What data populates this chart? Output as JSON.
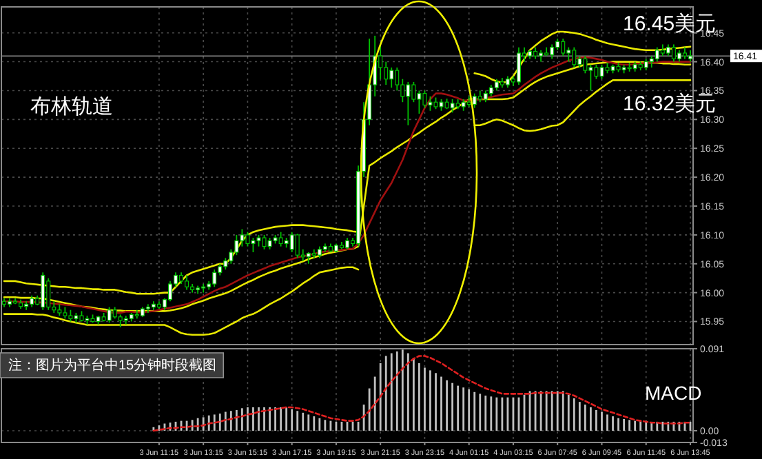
{
  "chart_data": [
    {
      "type": "candlestick",
      "tick_labels": "y",
      "grid": true,
      "categories": [
        null,
        null,
        null,
        null,
        null,
        null,
        null,
        null,
        null,
        null,
        null,
        null,
        null,
        null,
        null,
        null,
        null,
        null,
        null,
        null,
        null,
        null,
        null,
        null,
        null,
        null,
        null,
        null,
        null,
        null,
        null,
        null,
        null,
        null,
        null,
        null,
        null,
        null,
        null,
        null,
        null,
        null,
        null,
        null,
        null,
        null,
        null,
        null,
        null,
        null,
        null,
        null,
        null,
        null,
        null,
        null,
        null,
        null,
        null,
        null,
        null,
        null,
        null,
        null,
        null,
        null,
        null,
        null,
        null,
        null,
        null,
        null,
        null,
        null,
        null,
        null,
        null,
        null,
        null,
        null,
        null,
        null,
        null,
        null,
        null,
        null,
        null,
        null,
        null,
        null,
        null,
        null,
        null,
        null,
        null,
        null,
        null,
        null,
        null,
        null,
        null,
        null,
        null,
        null,
        null,
        null,
        null,
        null,
        null,
        null,
        null,
        null,
        null,
        null,
        null,
        null,
        null,
        null,
        null,
        null,
        null,
        null,
        null,
        null,
        null
      ],
      "ylim": [
        15.91,
        16.495
      ],
      "yticks": [
        15.95,
        {
          "value": 16,
          "label": "16.00"
        },
        16.05,
        {
          "value": 16.1,
          "label": "16.10"
        },
        16.15,
        {
          "value": 16.2,
          "label": "16.20"
        },
        16.25,
        {
          "value": 16.3,
          "label": "16.30"
        },
        16.35,
        {
          "value": 16.4,
          "label": "16.40"
        },
        16.45
      ],
      "ref_lines": [
        {
          "axis": "y",
          "value": 16.41,
          "label": "16.41",
          "color": "#8c8c8c"
        }
      ],
      "annotations": [
        "布林轨道",
        "16.45美元",
        "16.32美元"
      ],
      "series": [
        {
          "type": "line",
          "color": "#e8e800",
          "values": [
            16.02,
            16.02,
            16.02,
            16.018,
            16.016,
            16.015,
            16.014,
            16.013,
            16.012,
            16.011,
            16.01,
            16.01,
            16.009,
            16.008,
            16.008,
            16.007,
            16.006,
            16.006,
            16.005,
            16.005,
            16.005,
            16.003,
            16.001,
            16.0,
            15.998,
            15.998,
            15.998,
            15.998,
            15.999,
            16.0,
            16.0,
            16.01,
            16.02,
            16.03,
            16.035,
            16.038,
            16.041,
            16.044,
            16.047,
            16.05,
            16.05,
            16.06,
            16.075,
            16.09,
            16.1,
            16.105,
            16.108,
            16.11,
            16.112,
            16.114,
            16.115,
            16.116,
            16.117,
            16.117,
            16.117,
            16.116,
            16.115,
            16.114,
            16.113,
            16.112,
            16.11,
            16.109,
            16.108,
            16.106,
            16.105,
            16.3,
            null,
            null,
            null,
            null,
            null,
            null,
            null,
            null,
            null,
            null,
            null,
            null,
            null,
            null,
            null,
            null,
            null,
            null,
            null,
            16.38,
            16.378,
            16.375,
            16.37,
            16.366,
            16.364,
            16.365,
            16.375,
            16.39,
            16.405,
            16.42,
            16.428,
            16.436,
            16.442,
            16.448,
            16.452,
            16.452,
            16.451,
            16.45,
            16.448,
            16.445,
            16.442,
            16.438,
            16.435,
            16.432,
            16.43,
            16.428,
            16.426,
            16.424,
            16.422,
            16.421,
            16.42,
            16.42,
            16.42,
            16.421,
            16.422,
            16.423,
            16.424,
            16.425,
            16.426
          ]
        },
        {
          "type": "line",
          "color": "#e8e800",
          "values": [
            15.992,
            15.992,
            15.992,
            15.991,
            15.991,
            15.991,
            15.99,
            15.99,
            15.988,
            15.986,
            15.984,
            15.982,
            15.98,
            15.978,
            15.976,
            15.975,
            15.974,
            15.972,
            15.971,
            15.97,
            15.969,
            15.969,
            15.968,
            15.968,
            15.968,
            15.968,
            15.968,
            15.968,
            15.968,
            15.968,
            15.969,
            15.971,
            15.973,
            15.976,
            15.98,
            15.983,
            15.986,
            15.99,
            15.993,
            15.996,
            15.999,
            16.003,
            16.008,
            16.013,
            16.018,
            16.022,
            16.027,
            16.031,
            16.035,
            16.038,
            16.042,
            16.045,
            16.048,
            16.051,
            16.054,
            16.058,
            16.061,
            16.064,
            16.067,
            16.069,
            16.071,
            16.073,
            16.075,
            16.076,
            16.08,
            16.15,
            16.22,
            16.226,
            16.233,
            16.239,
            16.245,
            16.252,
            16.258,
            16.264,
            16.271,
            16.277,
            16.284,
            16.29,
            16.296,
            16.303,
            16.309,
            16.316,
            16.322,
            16.328,
            16.335,
            16.335,
            16.335,
            16.335,
            16.335,
            16.335,
            16.335,
            16.336,
            16.338,
            16.345,
            16.352,
            16.359,
            16.365,
            16.37,
            16.374,
            16.377,
            16.38,
            16.383,
            16.386,
            16.389,
            16.392,
            16.395,
            16.396,
            16.397,
            16.398,
            16.399,
            16.4,
            16.4,
            16.4,
            16.4,
            16.4,
            16.399,
            16.399,
            16.398,
            16.398,
            16.397,
            16.397,
            16.396,
            16.396,
            16.395,
            16.395
          ]
        },
        {
          "type": "line",
          "color": "#e8e800",
          "values": [
            15.963,
            15.963,
            15.963,
            15.963,
            15.963,
            15.963,
            15.962,
            15.962,
            15.96,
            15.957,
            15.955,
            15.952,
            15.95,
            15.948,
            15.946,
            15.944,
            15.944,
            15.944,
            15.944,
            15.944,
            15.944,
            15.944,
            15.944,
            15.944,
            15.944,
            15.944,
            15.944,
            15.944,
            15.944,
            15.944,
            15.94,
            15.935,
            15.93,
            15.928,
            15.927,
            15.927,
            15.927,
            15.928,
            15.93,
            15.935,
            15.94,
            15.945,
            15.95,
            15.956,
            15.96,
            15.963,
            15.968,
            15.974,
            15.98,
            15.985,
            15.99,
            15.996,
            16.002,
            16.009,
            16.016,
            16.022,
            16.029,
            16.035,
            16.037,
            16.039,
            16.041,
            16.043,
            16.044,
            16.044,
            16.04,
            null,
            null,
            null,
            null,
            null,
            null,
            null,
            null,
            null,
            null,
            null,
            null,
            null,
            null,
            null,
            null,
            null,
            null,
            null,
            null,
            16.29,
            16.29,
            16.293,
            16.297,
            16.3,
            16.298,
            16.294,
            16.29,
            16.285,
            16.281,
            16.28,
            16.281,
            16.283,
            16.286,
            16.289,
            16.29,
            16.295,
            16.305,
            16.315,
            16.325,
            16.333,
            16.34,
            16.348,
            16.355,
            16.362,
            16.368,
            16.368,
            16.368,
            16.368,
            16.368,
            16.368,
            16.368,
            16.368,
            16.368,
            16.368,
            16.368,
            16.368,
            16.368,
            16.368,
            16.368
          ]
        },
        {
          "type": "line",
          "color": "#a01010",
          "values": [
            15.985,
            15.985,
            15.985,
            15.984,
            15.984,
            15.984,
            15.983,
            15.983,
            15.982,
            15.981,
            15.98,
            15.979,
            15.978,
            15.977,
            15.976,
            15.974,
            15.972,
            15.97,
            15.968,
            15.966,
            15.965,
            15.965,
            15.967,
            15.967,
            15.966,
            15.966,
            15.967,
            15.968,
            15.97,
            15.972,
            15.974,
            15.976,
            15.978,
            15.98,
            15.984,
            15.988,
            15.993,
            15.998,
            16.003,
            16.007,
            16.01,
            16.015,
            16.02,
            16.025,
            16.03,
            16.034,
            16.038,
            16.042,
            16.046,
            16.049,
            16.052,
            16.055,
            16.058,
            16.061,
            16.063,
            16.065,
            16.067,
            16.07,
            16.071,
            16.072,
            16.073,
            16.074,
            16.075,
            16.076,
            16.085,
            16.1,
            16.12,
            16.14,
            16.16,
            16.175,
            16.19,
            16.21,
            16.23,
            16.255,
            16.28,
            16.3,
            16.32,
            16.335,
            16.345,
            16.345,
            16.343,
            16.34,
            16.337,
            16.333,
            16.333,
            16.334,
            16.335,
            16.337,
            16.339,
            16.341,
            16.343,
            16.344,
            16.345,
            16.352,
            16.36,
            16.367,
            16.374,
            16.38,
            16.385,
            16.39,
            16.394,
            16.398,
            16.402,
            16.405,
            16.407,
            16.408,
            16.407,
            16.405,
            16.403,
            16.4,
            16.398,
            16.396,
            16.395,
            16.395,
            16.396,
            16.397,
            16.398,
            16.398,
            16.399,
            16.4,
            16.4,
            16.4,
            16.4,
            16.4,
            16.4
          ]
        },
        {
          "color": "#00c000",
          "ohlc": [
            [
              15.985,
              15.99,
              15.975,
              15.98
            ],
            [
              15.98,
              15.99,
              15.975,
              15.985
            ],
            [
              15.985,
              15.99,
              15.98,
              15.982
            ],
            [
              15.982,
              15.988,
              15.972,
              15.976
            ],
            [
              15.976,
              15.985,
              15.97,
              15.98
            ],
            [
              15.98,
              15.995,
              15.975,
              15.99
            ],
            [
              15.99,
              15.995,
              15.978,
              15.98
            ],
            [
              15.975,
              16.035,
              15.97,
              16.03
            ],
            [
              16.02,
              16.025,
              15.97,
              15.975
            ],
            [
              15.975,
              15.985,
              15.965,
              15.97
            ],
            [
              15.97,
              15.98,
              15.96,
              15.965
            ],
            [
              15.965,
              15.975,
              15.955,
              15.96
            ],
            [
              15.96,
              15.97,
              15.95,
              15.955
            ],
            [
              15.955,
              15.965,
              15.948,
              15.96
            ],
            [
              15.96,
              15.968,
              15.95,
              15.952
            ],
            [
              15.952,
              15.96,
              15.945,
              15.955
            ],
            [
              15.955,
              15.962,
              15.948,
              15.95
            ],
            [
              15.95,
              15.96,
              15.945,
              15.958
            ],
            [
              15.958,
              15.965,
              15.95,
              15.952
            ],
            [
              15.952,
              15.975,
              15.948,
              15.97
            ],
            [
              15.97,
              15.975,
              15.955,
              15.958
            ],
            [
              15.958,
              15.962,
              15.94,
              15.952
            ],
            [
              15.952,
              15.96,
              15.945,
              15.955
            ],
            [
              15.955,
              15.965,
              15.95,
              15.962
            ],
            [
              15.962,
              15.97,
              15.955,
              15.96
            ],
            [
              15.96,
              15.975,
              15.958,
              15.972
            ],
            [
              15.972,
              15.98,
              15.965,
              15.975
            ],
            [
              15.975,
              15.985,
              15.97,
              15.98
            ],
            [
              15.98,
              15.985,
              15.972,
              15.975
            ],
            [
              15.975,
              15.99,
              15.97,
              15.988
            ],
            [
              15.988,
              16.02,
              15.985,
              16.015
            ],
            [
              16.015,
              16.035,
              16.01,
              16.03
            ],
            [
              16.03,
              16.035,
              16.015,
              16.02
            ],
            [
              16.02,
              16.03,
              16.005,
              16.01
            ],
            [
              16.01,
              16.015,
              16.0,
              16.005
            ],
            [
              16.005,
              16.012,
              15.998,
              16.008
            ],
            [
              16.008,
              16.015,
              16.0,
              16.01
            ],
            [
              16.01,
              16.02,
              16.005,
              16.015
            ],
            [
              16.015,
              16.04,
              16.01,
              16.035
            ],
            [
              16.035,
              16.05,
              16.03,
              16.045
            ],
            [
              16.045,
              16.06,
              16.04,
              16.055
            ],
            [
              16.055,
              16.075,
              16.05,
              16.07
            ],
            [
              16.07,
              16.1,
              16.065,
              16.09
            ],
            [
              16.09,
              16.11,
              16.08,
              16.1
            ],
            [
              16.1,
              16.105,
              16.08,
              16.085
            ],
            [
              16.085,
              16.095,
              16.07,
              16.09
            ],
            [
              16.09,
              16.1,
              16.08,
              16.095
            ],
            [
              16.095,
              16.1,
              16.075,
              16.08
            ],
            [
              16.08,
              16.095,
              16.075,
              16.09
            ],
            [
              16.09,
              16.1,
              16.085,
              16.095
            ],
            [
              16.095,
              16.105,
              16.08,
              16.085
            ],
            [
              16.085,
              16.095,
              16.078,
              16.09
            ],
            [
              16.075,
              16.105,
              16.07,
              16.1
            ],
            [
              16.1,
              16.102,
              16.06,
              16.065
            ],
            [
              16.065,
              16.075,
              16.055,
              16.062
            ],
            [
              16.062,
              16.07,
              16.05,
              16.068
            ],
            [
              16.068,
              16.075,
              16.06,
              16.065
            ],
            [
              16.065,
              16.08,
              16.06,
              16.075
            ],
            [
              16.075,
              16.085,
              16.07,
              16.08
            ],
            [
              16.08,
              16.085,
              16.07,
              16.072
            ],
            [
              16.072,
              16.085,
              16.07,
              16.082
            ],
            [
              16.082,
              16.088,
              16.075,
              16.078
            ],
            [
              16.078,
              16.095,
              16.075,
              16.09
            ],
            [
              16.09,
              16.095,
              16.08,
              16.085
            ],
            [
              16.085,
              16.22,
              16.08,
              16.21
            ],
            [
              16.21,
              16.33,
              16.2,
              16.3
            ],
            [
              16.3,
              16.44,
              16.29,
              16.36
            ],
            [
              16.36,
              16.445,
              16.34,
              16.41
            ],
            [
              16.41,
              16.43,
              16.37,
              16.39
            ],
            [
              16.39,
              16.4,
              16.36,
              16.37
            ],
            [
              16.37,
              16.39,
              16.355,
              16.385
            ],
            [
              16.385,
              16.39,
              16.35,
              16.36
            ],
            [
              16.36,
              16.37,
              16.33,
              16.34
            ],
            [
              16.34,
              16.365,
              16.29,
              16.36
            ],
            [
              16.36,
              16.365,
              16.33,
              16.335
            ],
            [
              16.335,
              16.35,
              16.31,
              16.345
            ],
            [
              16.345,
              16.35,
              16.32,
              16.325
            ],
            [
              16.325,
              16.34,
              16.315,
              16.33
            ],
            [
              16.33,
              16.338,
              16.318,
              16.322
            ],
            [
              16.322,
              16.335,
              16.315,
              16.33
            ],
            [
              16.33,
              16.336,
              16.318,
              16.32
            ],
            [
              16.32,
              16.335,
              16.312,
              16.328
            ],
            [
              16.328,
              16.335,
              16.318,
              16.322
            ],
            [
              16.322,
              16.335,
              16.315,
              16.33
            ],
            [
              16.33,
              16.34,
              16.322,
              16.326
            ],
            [
              16.326,
              16.345,
              16.32,
              16.34
            ],
            [
              16.34,
              16.35,
              16.33,
              16.335
            ],
            [
              16.335,
              16.35,
              16.33,
              16.345
            ],
            [
              16.345,
              16.36,
              16.34,
              16.355
            ],
            [
              16.355,
              16.37,
              16.35,
              16.365
            ],
            [
              16.365,
              16.372,
              16.355,
              16.36
            ],
            [
              16.36,
              16.375,
              16.355,
              16.37
            ],
            [
              16.37,
              16.375,
              16.358,
              16.365
            ],
            [
              16.365,
              16.425,
              16.36,
              16.415
            ],
            [
              16.415,
              16.425,
              16.4,
              16.41
            ],
            [
              16.41,
              16.42,
              16.405,
              16.418
            ],
            [
              16.418,
              16.425,
              16.405,
              16.41
            ],
            [
              16.41,
              16.42,
              16.4,
              16.415
            ],
            [
              16.415,
              16.425,
              16.41,
              16.412
            ],
            [
              16.412,
              16.43,
              16.405,
              16.425
            ],
            [
              16.425,
              16.44,
              16.42,
              16.435
            ],
            [
              16.435,
              16.44,
              16.41,
              16.415
            ],
            [
              16.415,
              16.425,
              16.4,
              16.42
            ],
            [
              16.42,
              16.425,
              16.39,
              16.395
            ],
            [
              16.395,
              16.41,
              16.39,
              16.405
            ],
            [
              16.405,
              16.41,
              16.38,
              16.385
            ],
            [
              16.385,
              16.395,
              16.35,
              16.39
            ],
            [
              16.39,
              16.395,
              16.37,
              16.375
            ],
            [
              16.375,
              16.395,
              16.37,
              16.39
            ],
            [
              16.39,
              16.398,
              16.38,
              16.385
            ],
            [
              16.385,
              16.395,
              16.38,
              16.392
            ],
            [
              16.392,
              16.398,
              16.382,
              16.386
            ],
            [
              16.386,
              16.395,
              16.38,
              16.39
            ],
            [
              16.39,
              16.398,
              16.383,
              16.388
            ],
            [
              16.388,
              16.4,
              16.383,
              16.395
            ],
            [
              16.395,
              16.4,
              16.385,
              16.39
            ],
            [
              16.39,
              16.405,
              16.385,
              16.4
            ],
            [
              16.4,
              16.41,
              16.39,
              16.405
            ],
            [
              16.405,
              16.425,
              16.4,
              16.42
            ],
            [
              16.42,
              16.43,
              16.41,
              16.415
            ],
            [
              16.415,
              16.43,
              16.41,
              16.425
            ],
            [
              16.425,
              16.43,
              16.4,
              16.405
            ],
            [
              16.405,
              16.42,
              16.4,
              16.415
            ],
            [
              16.415,
              16.425,
              16.405,
              16.41
            ],
            [
              16.405,
              16.42,
              16.4,
              16.41
            ]
          ]
        }
      ]
    },
    {
      "type": "bar",
      "grid": true,
      "categories": [
        null,
        null,
        null,
        null,
        null,
        null,
        null,
        null,
        null,
        null,
        null,
        null,
        null,
        null,
        null,
        null,
        null,
        null,
        null,
        null,
        null,
        null,
        null,
        null,
        null,
        null,
        null,
        null,
        "3 Jun 11:15",
        null,
        null,
        null,
        null,
        null,
        null,
        null,
        "3 Jun 13:15",
        null,
        null,
        null,
        null,
        null,
        null,
        null,
        "3 Jun 15:15",
        null,
        null,
        null,
        null,
        null,
        null,
        null,
        "3 Jun 17:15",
        null,
        null,
        null,
        null,
        null,
        null,
        null,
        "3 Jun 19:15",
        null,
        null,
        null,
        null,
        null,
        null,
        null,
        "3 Jun 21:15",
        null,
        null,
        null,
        null,
        null,
        null,
        null,
        "3 Jun 23:15",
        null,
        null,
        null,
        null,
        null,
        null,
        null,
        "4 Jun 01:15",
        null,
        null,
        null,
        null,
        null,
        null,
        null,
        "4 Jun 03:15",
        null,
        null,
        null,
        null,
        null,
        null,
        null,
        "6 Jun 07:45",
        null,
        null,
        null,
        null,
        null,
        null,
        null,
        "6 Jun 09:45",
        null,
        null,
        null,
        null,
        null,
        null,
        null,
        "6 Jun 11:45",
        null,
        null,
        null,
        null,
        null,
        null,
        null,
        "6 Jun 13:45"
      ],
      "ylim": [
        -0.013,
        0.091
      ],
      "yticks": [
        0.091,
        {
          "value": 0,
          "label": "0.00"
        },
        -0.013
      ],
      "annotations": [
        "MACD",
        "注：图片为平台中15分钟时段截图"
      ],
      "series": [
        {
          "color": "#c0c0c0",
          "values": [
            null,
            null,
            null,
            null,
            null,
            null,
            null,
            null,
            null,
            null,
            null,
            null,
            null,
            null,
            null,
            null,
            null,
            null,
            null,
            null,
            null,
            null,
            null,
            null,
            null,
            null,
            null,
            0.004,
            0.006,
            0.008,
            0.009,
            0.01,
            0.011,
            0.011,
            0.012,
            0.014,
            0.015,
            0.017,
            0.018,
            0.019,
            0.021,
            0.022,
            0.023,
            0.025,
            0.026,
            0.026,
            0.026,
            0.026,
            0.026,
            0.026,
            0.026,
            0.026,
            0.024,
            0.022,
            0.02,
            0.018,
            0.016,
            0.014,
            0.012,
            0.011,
            0.01,
            0.01,
            0.01,
            0.01,
            0.01,
            0.029,
            0.047,
            0.06,
            0.075,
            0.083,
            0.086,
            0.088,
            0.09,
            0.086,
            0.081,
            0.075,
            0.07,
            0.067,
            0.064,
            0.06,
            0.056,
            0.053,
            0.05,
            0.048,
            0.046,
            0.043,
            0.041,
            0.039,
            0.038,
            0.037,
            0.037,
            0.037,
            0.037,
            0.037,
            0.04,
            0.044,
            0.044,
            0.044,
            0.044,
            0.044,
            0.044,
            0.044,
            0.04,
            0.036,
            0.032,
            0.029,
            0.026,
            0.023,
            0.021,
            0.018,
            0.016,
            0.014,
            0.013,
            0.012,
            0.011,
            0.011,
            0.011,
            0.01,
            0.01,
            0.01,
            0.01,
            0.01,
            0.01,
            0.01,
            0.01
          ]
        },
        {
          "type": "line",
          "color": "#e02020",
          "line_style": "dashed",
          "values": [
            null,
            null,
            null,
            null,
            null,
            null,
            null,
            null,
            null,
            null,
            null,
            null,
            null,
            null,
            null,
            null,
            null,
            null,
            null,
            null,
            null,
            null,
            null,
            null,
            null,
            null,
            null,
            0.0,
            0.001,
            0.002,
            0.003,
            0.003,
            0.004,
            0.004,
            0.005,
            0.005,
            0.006,
            0.008,
            0.009,
            0.01,
            0.012,
            0.013,
            0.015,
            0.016,
            0.018,
            0.019,
            0.021,
            0.022,
            0.023,
            0.024,
            0.025,
            0.026,
            0.026,
            0.025,
            0.024,
            0.022,
            0.02,
            0.018,
            0.016,
            0.014,
            0.013,
            0.012,
            0.011,
            0.011,
            0.012,
            0.016,
            0.022,
            0.03,
            0.038,
            0.047,
            0.055,
            0.062,
            0.069,
            0.075,
            0.08,
            0.083,
            0.083,
            0.081,
            0.078,
            0.075,
            0.071,
            0.067,
            0.063,
            0.059,
            0.056,
            0.053,
            0.05,
            0.047,
            0.045,
            0.043,
            0.041,
            0.041,
            0.041,
            0.041,
            0.041,
            0.041,
            0.042,
            0.042,
            0.042,
            0.042,
            0.042,
            0.042,
            0.041,
            0.039,
            0.036,
            0.033,
            0.03,
            0.027,
            0.024,
            0.022,
            0.02,
            0.018,
            0.016,
            0.014,
            0.012,
            0.011,
            0.01,
            0.009,
            0.009,
            0.008,
            0.008,
            0.008,
            0.008,
            0.009,
            0.009
          ]
        }
      ]
    }
  ]
}
